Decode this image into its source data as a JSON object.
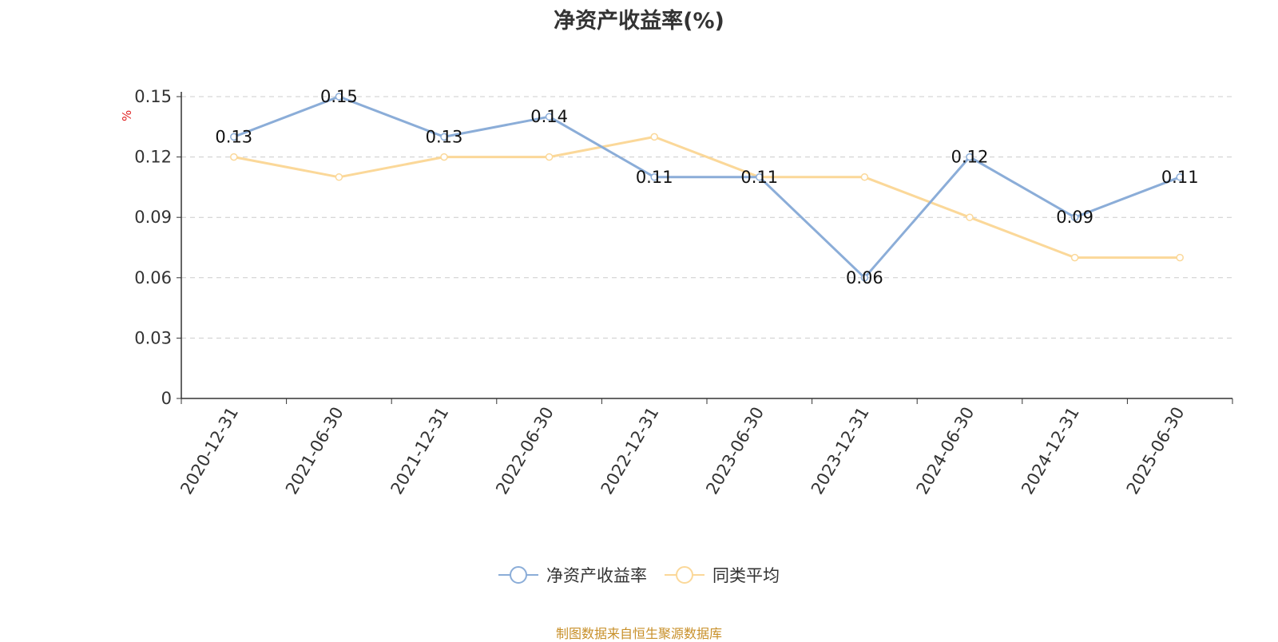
{
  "chart_data": {
    "type": "line",
    "title": "净资产收益率(%)",
    "ylabel": "%",
    "categories": [
      "2020-12-31",
      "2021-06-30",
      "2021-12-31",
      "2022-06-30",
      "2022-12-31",
      "2023-06-30",
      "2023-12-31",
      "2024-06-30",
      "2024-12-31",
      "2025-06-30"
    ],
    "ylim": [
      0,
      0.15
    ],
    "yticks": [
      "0",
      "0.03",
      "0.06",
      "0.09",
      "0.12",
      "0.15"
    ],
    "grid": true,
    "legend_position": "bottom",
    "series": [
      {
        "name": "净资产收益率",
        "color": "#8badd8",
        "values": [
          0.13,
          0.15,
          0.13,
          0.14,
          0.11,
          0.11,
          0.06,
          0.12,
          0.09,
          0.11
        ],
        "data_labels": [
          "0.13",
          "0.15",
          "0.13",
          "0.14",
          "0.11",
          "0.11",
          "0.06",
          "0.12",
          "0.09",
          "0.11"
        ]
      },
      {
        "name": "同类平均",
        "color": "#fbd899",
        "values": [
          0.12,
          0.11,
          0.12,
          0.12,
          0.13,
          0.11,
          0.11,
          0.09,
          0.07,
          0.07
        ]
      }
    ]
  },
  "footer": {
    "source": "制图数据来自恒生聚源数据库"
  }
}
